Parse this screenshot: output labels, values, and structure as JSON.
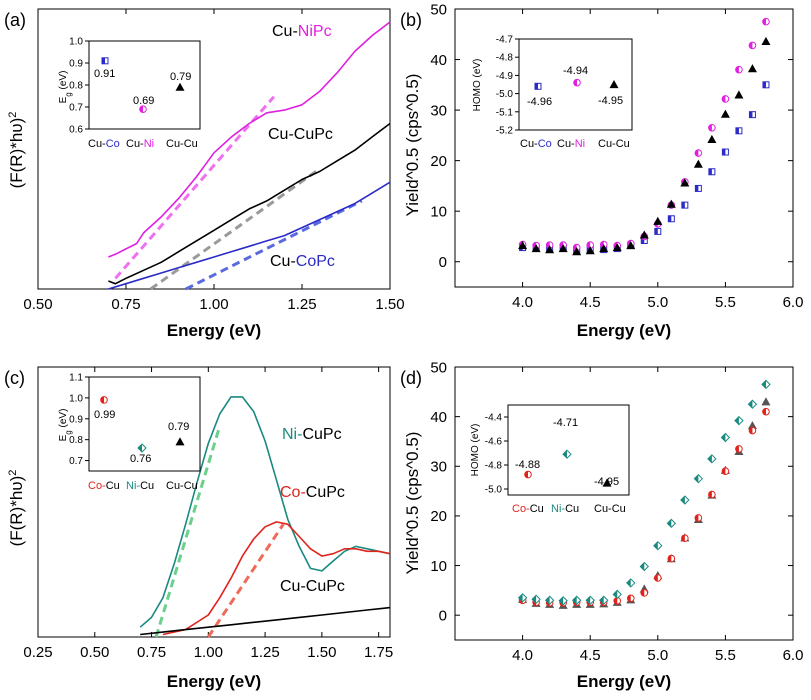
{
  "colors": {
    "black": "#000000",
    "blue": "#2b2bc8",
    "magenta": "#e020e0",
    "teal": "#1a8a80",
    "red": "#e0241c",
    "gray_dash": "#9a9a9a",
    "blue_dash": "#5a6ae0",
    "magenta_dash": "#f070f0",
    "green_dash": "#6ad08a",
    "red_dash": "#f06a5a"
  },
  "chart_data": [
    {
      "panel": "a",
      "type": "line",
      "panel_label": "(a)",
      "xlabel": "Energy (eV)",
      "ylabel": "(F(R)*hυ)",
      "ylabel_sup": "2",
      "xlim": [
        0.5,
        1.5
      ],
      "ylim": [
        0,
        1
      ],
      "xticks": [
        "0.50",
        "0.75",
        "1.00",
        "1.25",
        "1.50"
      ],
      "series": [
        {
          "name": "Cu-NiPc",
          "label_prefix": "Cu-",
          "label_suffix": "NiPc",
          "x": [
            0.7,
            0.72,
            0.75,
            0.78,
            0.8,
            0.85,
            0.9,
            0.95,
            1.0,
            1.05,
            1.1,
            1.15,
            1.2,
            1.25,
            1.3,
            1.35,
            1.4,
            1.45,
            1.5
          ],
          "y": [
            0.12,
            0.13,
            0.15,
            0.17,
            0.21,
            0.27,
            0.34,
            0.42,
            0.51,
            0.57,
            0.62,
            0.66,
            0.67,
            0.69,
            0.74,
            0.81,
            0.89,
            0.95,
            1.0
          ]
        },
        {
          "name": "Cu-CuPc",
          "label_prefix": "Cu-",
          "label_suffix": "CuPc",
          "x": [
            0.7,
            0.72,
            0.75,
            0.8,
            0.85,
            0.9,
            0.95,
            1.0,
            1.05,
            1.1,
            1.15,
            1.2,
            1.25,
            1.3,
            1.35,
            1.4,
            1.45,
            1.5
          ],
          "y": [
            0.03,
            0.02,
            0.04,
            0.07,
            0.1,
            0.14,
            0.18,
            0.22,
            0.26,
            0.3,
            0.33,
            0.37,
            0.41,
            0.44,
            0.48,
            0.52,
            0.57,
            0.62
          ]
        },
        {
          "name": "Cu-CoPc",
          "label_prefix": "Cu-",
          "label_suffix": "CoPc",
          "x": [
            0.7,
            0.75,
            0.8,
            0.85,
            0.9,
            0.95,
            1.0,
            1.05,
            1.1,
            1.15,
            1.2,
            1.25,
            1.3,
            1.35,
            1.4,
            1.45,
            1.5
          ],
          "y": [
            0.0,
            0.02,
            0.04,
            0.06,
            0.08,
            0.1,
            0.12,
            0.14,
            0.16,
            0.18,
            0.2,
            0.23,
            0.26,
            0.29,
            0.32,
            0.36,
            0.4
          ]
        }
      ],
      "tangents": [
        {
          "series": "Cu-NiPc",
          "x": [
            0.72,
            1.17
          ],
          "y": [
            0.04,
            0.72
          ]
        },
        {
          "series": "Cu-CuPc",
          "x": [
            0.82,
            1.3
          ],
          "y": [
            0.0,
            0.45
          ]
        },
        {
          "series": "Cu-CoPc",
          "x": [
            0.92,
            1.42
          ],
          "y": [
            0.0,
            0.33
          ]
        }
      ],
      "inset": {
        "type": "scatter",
        "ylabel_main": "E",
        "ylabel_sub": "g",
        "ylabel_unit": " (eV)",
        "ylim": [
          0.6,
          1.0
        ],
        "yticks": [
          "0.6",
          "0.7",
          "0.8",
          "0.9",
          "1.0"
        ],
        "categories": [
          {
            "prefix": "Cu-",
            "suffix": "Co"
          },
          {
            "prefix": "Cu-",
            "suffix": "Ni"
          },
          {
            "prefix": "",
            "suffix": "Cu-Cu"
          }
        ],
        "points": [
          {
            "value": 0.91,
            "label": "0.91"
          },
          {
            "value": 0.69,
            "label": "0.69"
          },
          {
            "value": 0.79,
            "label": "0.79"
          }
        ]
      }
    },
    {
      "panel": "b",
      "type": "scatter",
      "panel_label": "(b)",
      "xlabel": "Energy (eV)",
      "ylabel": "Yield^0.5 (cps^0.5)",
      "xlim": [
        3.5,
        6.0
      ],
      "ylim": [
        -5,
        50
      ],
      "xticks": [
        "4.0",
        "4.5",
        "5.0",
        "5.5",
        "6.0"
      ],
      "yticks": [
        "0",
        "10",
        "20",
        "30",
        "40",
        "50"
      ],
      "x": [
        4.0,
        4.1,
        4.2,
        4.3,
        4.4,
        4.5,
        4.6,
        4.7,
        4.8,
        4.9,
        5.0,
        5.1,
        5.2,
        5.3,
        5.4,
        5.5,
        5.6,
        5.7,
        5.8
      ],
      "series": [
        {
          "name": "Cu-CoPc",
          "values": [
            2.8,
            2.9,
            2.6,
            2.7,
            2.2,
            2.5,
            2.4,
            2.6,
            3.2,
            4.2,
            6.0,
            8.5,
            11.2,
            14.5,
            17.8,
            21.7,
            25.9,
            29.1,
            35.0
          ]
        },
        {
          "name": "Cu-NiPc",
          "values": [
            3.4,
            3.2,
            3.3,
            3.3,
            2.8,
            3.3,
            3.4,
            3.2,
            3.6,
            5.0,
            7.5,
            11.2,
            15.8,
            21.5,
            26.5,
            32.2,
            38.0,
            42.8,
            47.5
          ]
        },
        {
          "name": "Cu-CuPc",
          "values": [
            3.2,
            2.6,
            2.4,
            2.6,
            2.0,
            2.2,
            2.6,
            2.8,
            3.2,
            5.3,
            8.0,
            11.4,
            15.6,
            19.3,
            24.2,
            29.2,
            33.0,
            38.2,
            43.6
          ]
        }
      ],
      "inset": {
        "type": "scatter",
        "ylabel": "HOMO (eV)",
        "ylim": [
          -5.2,
          -4.7
        ],
        "yticks": [
          "-4.7",
          "-4.8",
          "-4.9",
          "-5.0",
          "-5.1",
          "-5.2"
        ],
        "categories": [
          {
            "prefix": "Cu-",
            "suffix": "Co"
          },
          {
            "prefix": "Cu-",
            "suffix": "Ni"
          },
          {
            "prefix": "",
            "suffix": "Cu-Cu"
          }
        ],
        "points": [
          {
            "value": -4.96,
            "label": "-4.96"
          },
          {
            "value": -4.94,
            "label": "-4.94"
          },
          {
            "value": -4.95,
            "label": "-4.95"
          }
        ]
      }
    },
    {
      "panel": "c",
      "type": "line",
      "panel_label": "(c)",
      "xlabel": "Energy (eV)",
      "ylabel": "(F(R)*hυ)",
      "ylabel_sup": "2",
      "xlim": [
        0.25,
        1.8
      ],
      "ylim": [
        0,
        1
      ],
      "xticks": [
        "0.25",
        "0.50",
        "0.75",
        "1.00",
        "1.25",
        "1.50",
        "1.75"
      ],
      "series": [
        {
          "name": "Ni-CuPc",
          "label_prefix": "Ni-",
          "label_suffix": "CuPc",
          "x": [
            0.7,
            0.75,
            0.8,
            0.85,
            0.9,
            0.95,
            1.0,
            1.05,
            1.1,
            1.15,
            1.2,
            1.25,
            1.3,
            1.35,
            1.4,
            1.45,
            1.5,
            1.55,
            1.6,
            1.65,
            1.7,
            1.75,
            1.8
          ],
          "y": [
            0.04,
            0.08,
            0.16,
            0.3,
            0.46,
            0.63,
            0.79,
            0.91,
            0.98,
            0.98,
            0.92,
            0.8,
            0.64,
            0.48,
            0.37,
            0.28,
            0.27,
            0.31,
            0.35,
            0.37,
            0.36,
            0.35,
            0.34
          ]
        },
        {
          "name": "Co-CuPc",
          "label_prefix": "Co-",
          "label_suffix": "CuPc",
          "x": [
            0.8,
            0.9,
            1.0,
            1.05,
            1.1,
            1.15,
            1.2,
            1.25,
            1.3,
            1.35,
            1.4,
            1.45,
            1.5,
            1.55,
            1.6,
            1.65,
            1.7,
            1.75,
            1.8
          ],
          "y": [
            0.01,
            0.03,
            0.09,
            0.16,
            0.24,
            0.33,
            0.4,
            0.45,
            0.47,
            0.46,
            0.41,
            0.36,
            0.33,
            0.34,
            0.36,
            0.36,
            0.35,
            0.35,
            0.34
          ]
        },
        {
          "name": "Cu-CuPc",
          "label_prefix": "Cu-",
          "label_suffix": "CuPc",
          "x": [
            0.7,
            0.8,
            0.9,
            1.0,
            1.1,
            1.2,
            1.3,
            1.4,
            1.5,
            1.6,
            1.7,
            1.8
          ],
          "y": [
            0.01,
            0.02,
            0.03,
            0.04,
            0.05,
            0.06,
            0.07,
            0.08,
            0.09,
            0.1,
            0.11,
            0.12
          ]
        }
      ],
      "tangents": [
        {
          "series": "Ni-CuPc",
          "x": [
            0.77,
            1.05
          ],
          "y": [
            0.0,
            0.86
          ]
        },
        {
          "series": "Co-CuPc",
          "x": [
            1.0,
            1.33
          ],
          "y": [
            0.0,
            0.46
          ]
        }
      ],
      "inset": {
        "type": "scatter",
        "ylabel_main": "E",
        "ylabel_sub": "g",
        "ylabel_unit": " (eV)",
        "ylim": [
          0.65,
          1.1
        ],
        "yticks": [
          "0.7",
          "0.8",
          "0.9",
          "1.0",
          "1.1"
        ],
        "categories": [
          {
            "prefix": "Co-",
            "suffix": "Cu"
          },
          {
            "prefix": "Ni-",
            "suffix": "Cu"
          },
          {
            "prefix": "",
            "suffix": "Cu-Cu"
          }
        ],
        "points": [
          {
            "value": 0.99,
            "label": "0.99"
          },
          {
            "value": 0.76,
            "label": "0.76"
          },
          {
            "value": 0.79,
            "label": "0.79"
          }
        ]
      }
    },
    {
      "panel": "d",
      "type": "scatter",
      "panel_label": "(d)",
      "xlabel": "Energy (eV)",
      "ylabel": "Yield^0.5 (cps^0.5)",
      "xlim": [
        3.5,
        6.0
      ],
      "ylim": [
        -5,
        50
      ],
      "xticks": [
        "4.0",
        "4.5",
        "5.0",
        "5.5",
        "6.0"
      ],
      "yticks": [
        "0",
        "10",
        "20",
        "30",
        "40",
        "50"
      ],
      "x": [
        4.0,
        4.1,
        4.2,
        4.3,
        4.4,
        4.5,
        4.6,
        4.7,
        4.8,
        4.9,
        5.0,
        5.1,
        5.2,
        5.3,
        5.4,
        5.5,
        5.6,
        5.7,
        5.8
      ],
      "series": [
        {
          "name": "Ni-CuPc",
          "values": [
            3.5,
            3.2,
            3.0,
            2.9,
            3.0,
            3.0,
            3.0,
            4.2,
            6.5,
            9.8,
            14.0,
            18.5,
            23.2,
            27.5,
            31.5,
            35.8,
            39.2,
            42.5,
            46.5
          ]
        },
        {
          "name": "Co-CuPc",
          "values": [
            3.0,
            2.6,
            2.5,
            2.5,
            2.6,
            2.6,
            2.6,
            2.9,
            3.4,
            4.5,
            7.5,
            11.4,
            15.5,
            19.6,
            24.3,
            29.0,
            33.5,
            37.2,
            41.0
          ]
        },
        {
          "name": "Cu-CuPc",
          "values": [
            3.2,
            2.4,
            2.2,
            2.0,
            2.2,
            2.2,
            2.3,
            2.6,
            3.1,
            5.3,
            8.0,
            11.4,
            15.6,
            19.3,
            24.2,
            29.2,
            33.0,
            38.2,
            43.0
          ]
        }
      ],
      "inset": {
        "type": "scatter",
        "ylabel": "HOMO (eV)",
        "ylim": [
          -5.0,
          -4.3
        ],
        "yticks": [
          "-4.4",
          "-4.6",
          "-4.8",
          "-5.0"
        ],
        "categories": [
          {
            "prefix": "Co-",
            "suffix": "Cu"
          },
          {
            "prefix": "Ni-",
            "suffix": "Cu"
          },
          {
            "prefix": "",
            "suffix": "Cu-Cu"
          }
        ],
        "points": [
          {
            "value": -4.88,
            "label": "-4.88"
          },
          {
            "value": -4.71,
            "label": "-4.71"
          },
          {
            "value": -4.95,
            "label": "-4.95"
          }
        ]
      }
    }
  ]
}
